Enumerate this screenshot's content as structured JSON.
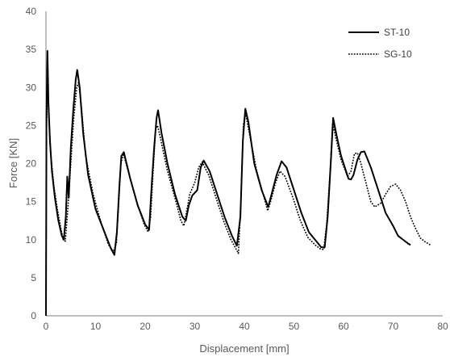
{
  "chart_data": {
    "type": "line",
    "title": "",
    "xlabel": "Displacement [mm]",
    "ylabel": "Force [KN]",
    "xlim": [
      0,
      80
    ],
    "ylim": [
      0,
      40
    ],
    "xticks": [
      0,
      10,
      20,
      30,
      40,
      50,
      60,
      70,
      80
    ],
    "yticks": [
      0,
      5,
      10,
      15,
      20,
      25,
      30,
      35,
      40
    ],
    "grid": false,
    "legend_position": "top-right",
    "series": [
      {
        "name": "ST-10",
        "style": "solid",
        "color": "#000000",
        "points": [
          [
            0,
            0
          ],
          [
            0.1,
            26
          ],
          [
            0.3,
            34.8
          ],
          [
            0.5,
            28
          ],
          [
            0.8,
            23
          ],
          [
            1.2,
            19
          ],
          [
            1.8,
            15.5
          ],
          [
            2.5,
            12.5
          ],
          [
            3.2,
            10.5
          ],
          [
            3.6,
            10
          ],
          [
            4,
            13
          ],
          [
            4.3,
            18.3
          ],
          [
            4.6,
            15.5
          ],
          [
            5,
            22
          ],
          [
            5.5,
            27
          ],
          [
            6,
            31
          ],
          [
            6.3,
            32.3
          ],
          [
            6.8,
            30
          ],
          [
            7.5,
            24
          ],
          [
            8.5,
            18.5
          ],
          [
            10,
            14
          ],
          [
            11.5,
            11.5
          ],
          [
            13,
            9
          ],
          [
            13.8,
            8
          ],
          [
            14.3,
            11
          ],
          [
            14.8,
            17
          ],
          [
            15.2,
            21
          ],
          [
            15.7,
            21.5
          ],
          [
            17,
            18
          ],
          [
            18.5,
            14.5
          ],
          [
            20,
            12
          ],
          [
            20.8,
            11.3
          ],
          [
            21.3,
            17
          ],
          [
            21.8,
            22
          ],
          [
            22.3,
            26
          ],
          [
            22.6,
            27
          ],
          [
            23.3,
            24
          ],
          [
            24.5,
            20
          ],
          [
            26,
            16
          ],
          [
            27.5,
            13
          ],
          [
            28.2,
            12.5
          ],
          [
            28.8,
            14.5
          ],
          [
            29.5,
            15.8
          ],
          [
            30.5,
            16.5
          ],
          [
            31.2,
            19.5
          ],
          [
            31.8,
            20.4
          ],
          [
            33,
            19
          ],
          [
            34.5,
            16
          ],
          [
            36,
            13
          ],
          [
            37.5,
            10.5
          ],
          [
            38.5,
            9.2
          ],
          [
            39.2,
            13
          ],
          [
            39.7,
            23
          ],
          [
            40.2,
            27.2
          ],
          [
            40.8,
            25.5
          ],
          [
            42,
            20
          ],
          [
            43.5,
            16.5
          ],
          [
            44.8,
            14.3
          ],
          [
            45.5,
            16
          ],
          [
            46.5,
            18.5
          ],
          [
            47.5,
            20.3
          ],
          [
            48.5,
            19.5
          ],
          [
            50,
            16.5
          ],
          [
            51.5,
            13.5
          ],
          [
            53,
            11
          ],
          [
            54.5,
            9.8
          ],
          [
            55.5,
            9
          ],
          [
            56.2,
            9
          ],
          [
            56.8,
            13
          ],
          [
            57.5,
            21
          ],
          [
            57.9,
            26
          ],
          [
            58.5,
            24
          ],
          [
            59.5,
            21
          ],
          [
            61,
            18
          ],
          [
            61.5,
            17.9
          ],
          [
            62,
            18.5
          ],
          [
            62.8,
            20.5
          ],
          [
            63.5,
            21.5
          ],
          [
            64.2,
            21.6
          ],
          [
            65.5,
            19.5
          ],
          [
            67,
            16.5
          ],
          [
            68.5,
            13.5
          ],
          [
            70,
            11.8
          ],
          [
            71,
            10.5
          ],
          [
            72,
            10
          ],
          [
            73,
            9.5
          ],
          [
            73.5,
            9.3
          ]
        ]
      },
      {
        "name": "SG-10",
        "style": "dotted",
        "color": "#000000",
        "points": [
          [
            0,
            0
          ],
          [
            0.1,
            24
          ],
          [
            0.3,
            30.8
          ],
          [
            0.6,
            26
          ],
          [
            1,
            21
          ],
          [
            1.6,
            17
          ],
          [
            2.3,
            14
          ],
          [
            3,
            11.5
          ],
          [
            3.5,
            10
          ],
          [
            3.9,
            9.8
          ],
          [
            4.4,
            14
          ],
          [
            5,
            20
          ],
          [
            5.6,
            26
          ],
          [
            6.2,
            30
          ],
          [
            6.6,
            30.7
          ],
          [
            7.2,
            27
          ],
          [
            8,
            21
          ],
          [
            9.5,
            16
          ],
          [
            11,
            12.5
          ],
          [
            12.5,
            9.5
          ],
          [
            13.5,
            8.3
          ],
          [
            14.2,
            9.5
          ],
          [
            14.6,
            14
          ],
          [
            15.1,
            20
          ],
          [
            15.6,
            21.3
          ],
          [
            16.8,
            18.5
          ],
          [
            18.3,
            15
          ],
          [
            19.8,
            12
          ],
          [
            20.6,
            11
          ],
          [
            21.1,
            13
          ],
          [
            21.6,
            19
          ],
          [
            22.1,
            24.5
          ],
          [
            22.5,
            25
          ],
          [
            23.2,
            23
          ],
          [
            24.5,
            19
          ],
          [
            26,
            15.5
          ],
          [
            27.2,
            12.5
          ],
          [
            27.8,
            11.8
          ],
          [
            28.3,
            13.5
          ],
          [
            29,
            16
          ],
          [
            30,
            17.5
          ],
          [
            30.8,
            19.5
          ],
          [
            31.5,
            20.2
          ],
          [
            32.8,
            18.5
          ],
          [
            34.3,
            15.5
          ],
          [
            35.8,
            12.5
          ],
          [
            37.3,
            10
          ],
          [
            38.3,
            8.8
          ],
          [
            38.8,
            8.2
          ],
          [
            39.3,
            15
          ],
          [
            39.8,
            25
          ],
          [
            40.2,
            26.8
          ],
          [
            41,
            24
          ],
          [
            42.5,
            19
          ],
          [
            44,
            15.5
          ],
          [
            44.7,
            13.8
          ],
          [
            45.3,
            15
          ],
          [
            46.3,
            17.5
          ],
          [
            47.2,
            19
          ],
          [
            48.2,
            18.3
          ],
          [
            49.8,
            15.5
          ],
          [
            51.3,
            12.5
          ],
          [
            52.8,
            10.3
          ],
          [
            54.3,
            9.3
          ],
          [
            55.3,
            8.8
          ],
          [
            56,
            8.7
          ],
          [
            56.6,
            12
          ],
          [
            57.3,
            19
          ],
          [
            57.8,
            25.3
          ],
          [
            58.4,
            23.5
          ],
          [
            59.5,
            20.5
          ],
          [
            60.8,
            18.3
          ],
          [
            61.5,
            19
          ],
          [
            62.2,
            21.3
          ],
          [
            62.8,
            21.4
          ],
          [
            63.5,
            20
          ],
          [
            64.5,
            17.5
          ],
          [
            65.5,
            15
          ],
          [
            66.3,
            14.3
          ],
          [
            67.5,
            14.8
          ],
          [
            68.5,
            16
          ],
          [
            69.5,
            17
          ],
          [
            70.5,
            17.3
          ],
          [
            71.5,
            16.5
          ],
          [
            72.5,
            15
          ],
          [
            73.5,
            13
          ],
          [
            74.5,
            11.5
          ],
          [
            75.5,
            10.2
          ],
          [
            76.5,
            9.7
          ],
          [
            77.5,
            9.3
          ]
        ]
      }
    ]
  }
}
